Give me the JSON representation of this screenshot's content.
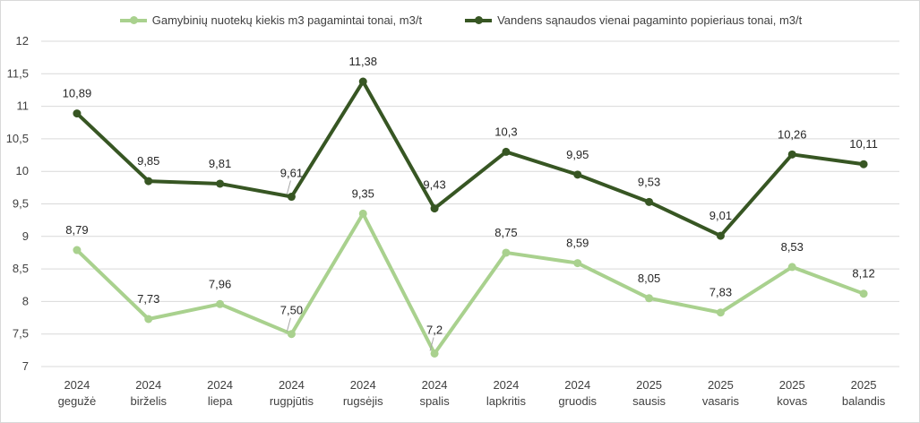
{
  "chart_data": {
    "type": "line",
    "title": "",
    "xlabel": "",
    "ylabel": "",
    "ylim": [
      7,
      12
    ],
    "yticks": [
      "7",
      "7,5",
      "8",
      "8,5",
      "9",
      "9,5",
      "10",
      "10,5",
      "11",
      "11,5",
      "12"
    ],
    "ytick_values": [
      7,
      7.5,
      8,
      8.5,
      9,
      9.5,
      10,
      10.5,
      11,
      11.5,
      12
    ],
    "grid": true,
    "legend_position": "top",
    "categories": [
      {
        "year": "2024",
        "month": "gegužė"
      },
      {
        "year": "2024",
        "month": "birželis"
      },
      {
        "year": "2024",
        "month": "liepa"
      },
      {
        "year": "2024",
        "month": "rugpjūtis"
      },
      {
        "year": "2024",
        "month": "rugsėjis"
      },
      {
        "year": "2024",
        "month": "spalis"
      },
      {
        "year": "2024",
        "month": "lapkritis"
      },
      {
        "year": "2024",
        "month": "gruodis"
      },
      {
        "year": "2025",
        "month": "sausis"
      },
      {
        "year": "2025",
        "month": "vasaris"
      },
      {
        "year": "2025",
        "month": "kovas"
      },
      {
        "year": "2025",
        "month": "balandis"
      }
    ],
    "series": [
      {
        "name": "Gamybinių nuotekų kiekis m3 pagamintai tonai, m3/t",
        "color": "#a9d18e",
        "values": [
          8.79,
          7.73,
          7.96,
          7.5,
          9.35,
          7.2,
          8.75,
          8.59,
          8.05,
          7.83,
          8.53,
          8.12
        ],
        "labels": [
          "8,79",
          "7,73",
          "7,96",
          "7,50",
          "9,35",
          "7,2",
          "8,75",
          "8,59",
          "8,05",
          "7,83",
          "8,53",
          "8,12"
        ]
      },
      {
        "name": "Vandens sąnaudos vienai pagaminto popieriaus tonai, m3/t",
        "color": "#375623",
        "values": [
          10.89,
          9.85,
          9.81,
          9.61,
          11.38,
          9.43,
          10.3,
          9.95,
          9.53,
          9.01,
          10.26,
          10.11
        ],
        "labels": [
          "10,89",
          "9,85",
          "9,81",
          "9,61",
          "11,38",
          "9,43",
          "10,3",
          "9,95",
          "9,53",
          "9,01",
          "10,26",
          "10,11"
        ]
      }
    ]
  }
}
